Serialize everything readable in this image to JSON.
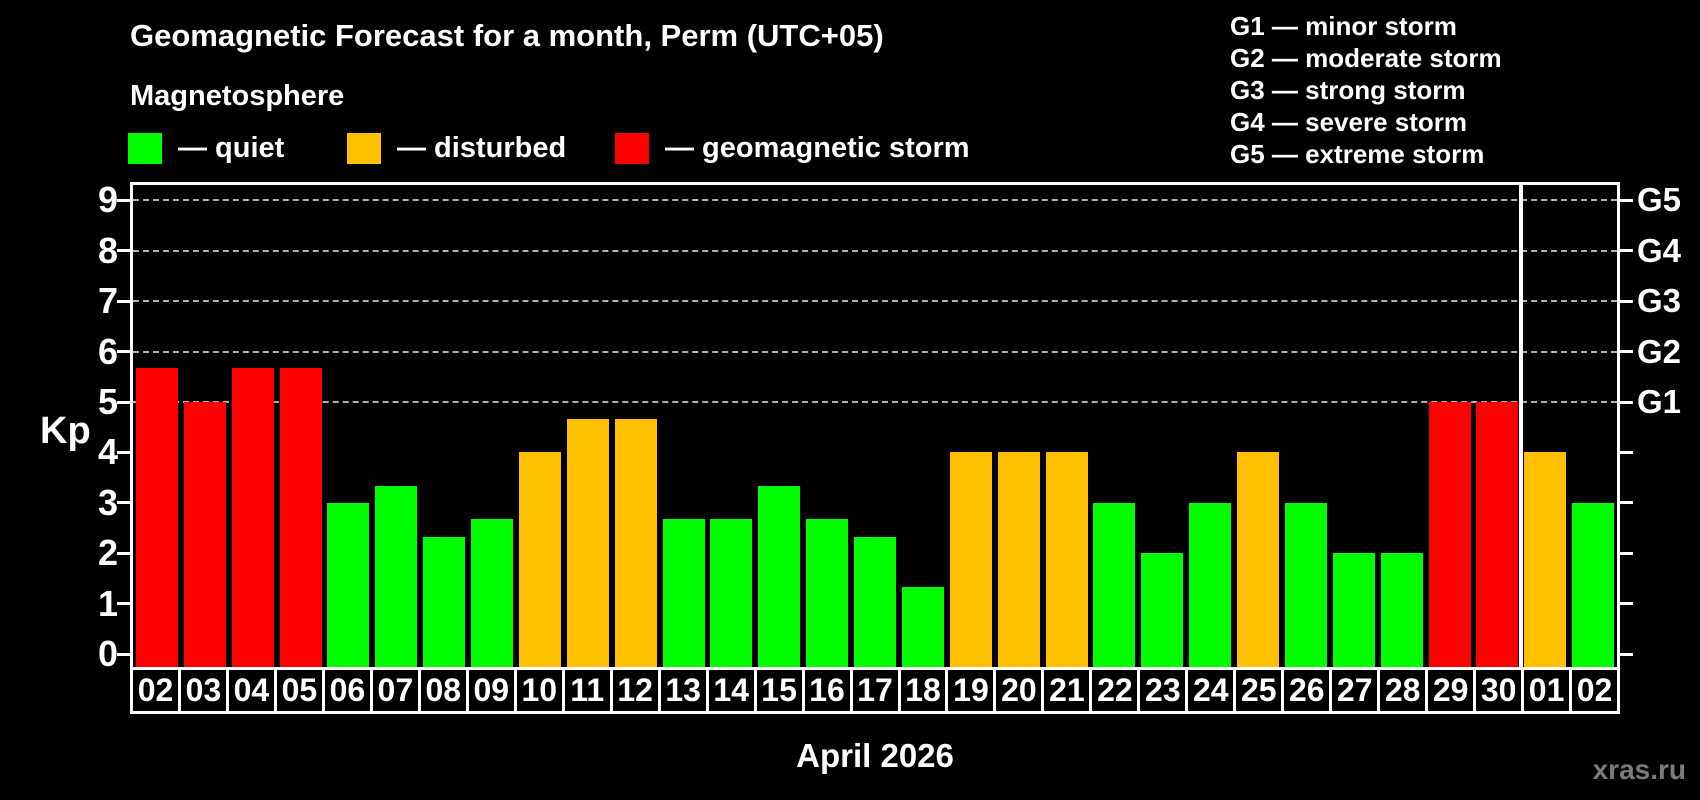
{
  "header": {
    "title": "Geomagnetic Forecast for a month, Perm (UTC+05)",
    "subtitle": "Magnetosphere"
  },
  "legend": {
    "items": [
      {
        "name": "quiet",
        "label": "— quiet",
        "color": "#00ff00"
      },
      {
        "name": "disturbed",
        "label": "— disturbed",
        "color": "#ffc000"
      },
      {
        "name": "storm",
        "label": "— geomagnetic storm",
        "color": "#ff0000"
      }
    ]
  },
  "g_scale_legend": {
    "lines": [
      "G1 — minor storm",
      "G2 — moderate storm",
      "G3 — strong storm",
      "G4 — severe storm",
      "G5 — extreme storm"
    ]
  },
  "axes": {
    "y_left_label": "Kp",
    "y_ticks": [
      0,
      1,
      2,
      3,
      4,
      5,
      6,
      7,
      8,
      9
    ],
    "g_levels": [
      {
        "label": "G1",
        "kp": 5
      },
      {
        "label": "G2",
        "kp": 6
      },
      {
        "label": "G3",
        "kp": 7
      },
      {
        "label": "G4",
        "kp": 8
      },
      {
        "label": "G5",
        "kp": 9
      }
    ]
  },
  "month_label": "April 2026",
  "watermark": "xras.ru",
  "chart_data": {
    "type": "bar",
    "title": "Geomagnetic Forecast for a month, Perm (UTC+05)",
    "subtitle": "Magnetosphere",
    "xlabel": "April 2026",
    "ylabel": "Kp",
    "ylim": [
      0,
      9
    ],
    "grid": "dashed horizontal lines at Kp 5-9 (G1-G5 storm levels) only",
    "legend_position": "top-left",
    "categories": [
      "02",
      "03",
      "04",
      "05",
      "06",
      "07",
      "08",
      "09",
      "10",
      "11",
      "12",
      "13",
      "14",
      "15",
      "16",
      "17",
      "18",
      "19",
      "20",
      "21",
      "22",
      "23",
      "24",
      "25",
      "26",
      "27",
      "28",
      "29",
      "30",
      "01",
      "02"
    ],
    "values": [
      5.67,
      5.0,
      5.67,
      5.67,
      3.0,
      3.33,
      2.33,
      2.67,
      4.0,
      4.67,
      4.67,
      2.67,
      2.67,
      3.33,
      2.67,
      2.33,
      1.33,
      4.0,
      4.0,
      4.0,
      3.0,
      2.0,
      3.0,
      4.0,
      3.0,
      2.0,
      2.0,
      5.0,
      5.0,
      4.0,
      3.0
    ],
    "statuses": [
      "storm",
      "storm",
      "storm",
      "storm",
      "quiet",
      "quiet",
      "quiet",
      "quiet",
      "disturbed",
      "disturbed",
      "disturbed",
      "quiet",
      "quiet",
      "quiet",
      "quiet",
      "quiet",
      "quiet",
      "disturbed",
      "disturbed",
      "disturbed",
      "quiet",
      "quiet",
      "quiet",
      "disturbed",
      "quiet",
      "quiet",
      "quiet",
      "storm",
      "storm",
      "disturbed",
      "quiet"
    ],
    "status_colors": {
      "quiet": "#00ff00",
      "disturbed": "#ffc000",
      "storm": "#ff0000"
    },
    "separator_slot": 29
  }
}
